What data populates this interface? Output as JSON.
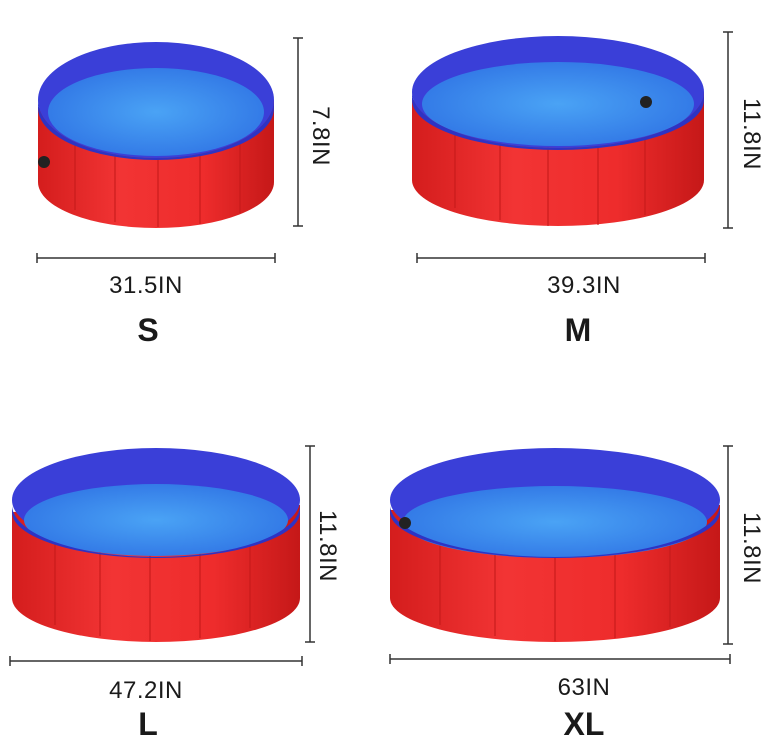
{
  "colors": {
    "pool_red": "#ee2a2a",
    "pool_red_dark": "#c81818",
    "pool_blue_wall": "#3a3fd8",
    "pool_blue_floor": "#3f8ff0",
    "line": "#333333"
  },
  "pools": [
    {
      "size": "S",
      "diameter": "31.5IN",
      "height": "7.8IN"
    },
    {
      "size": "M",
      "diameter": "39.3IN",
      "height": "11.8IN"
    },
    {
      "size": "L",
      "diameter": "47.2IN",
      "height": "11.8IN"
    },
    {
      "size": "XL",
      "diameter": "63IN",
      "height": "11.8IN"
    }
  ]
}
